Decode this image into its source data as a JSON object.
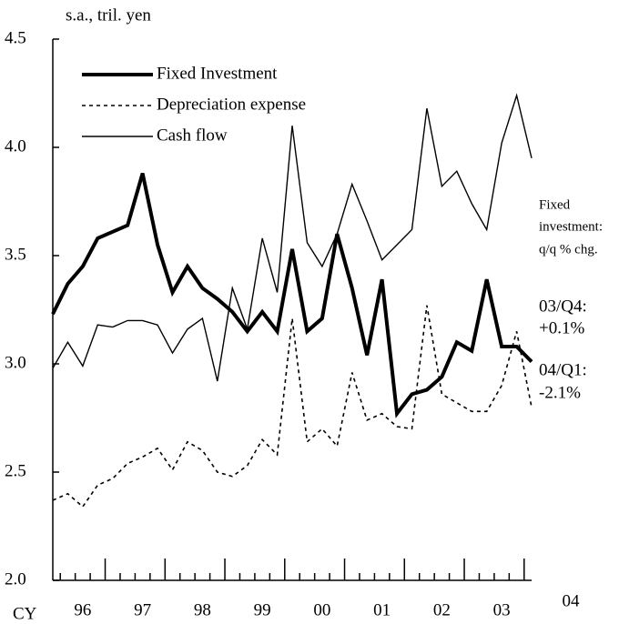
{
  "chart_data": {
    "type": "line",
    "ylabel": "s.a., tril. yen",
    "x_prefix": "CY",
    "x_end_label": "04",
    "categories": [
      null,
      null,
      "96",
      null,
      null,
      null,
      "97",
      null,
      null,
      null,
      "98",
      null,
      null,
      null,
      "99",
      null,
      null,
      null,
      "00",
      null,
      null,
      null,
      "01",
      null,
      null,
      null,
      "02",
      null,
      null,
      null,
      "03",
      null,
      null
    ],
    "series": [
      {
        "name": "Fixed Investment",
        "color": "#000000",
        "line_width": 4,
        "dash": "none",
        "values": [
          3.23,
          3.37,
          3.45,
          3.58,
          3.61,
          3.64,
          3.88,
          3.55,
          3.33,
          3.45,
          3.35,
          3.3,
          3.24,
          3.15,
          3.24,
          3.15,
          3.53,
          3.15,
          3.21,
          3.6,
          3.35,
          3.04,
          3.39,
          2.77,
          2.86,
          2.88,
          2.94,
          3.1,
          3.06,
          3.39,
          3.08,
          3.08,
          3.01
        ]
      },
      {
        "name": "Depreciation expense",
        "color": "#000000",
        "line_width": 1.6,
        "dash": "4 4",
        "values": [
          2.37,
          2.4,
          2.34,
          2.44,
          2.47,
          2.54,
          2.57,
          2.61,
          2.51,
          2.64,
          2.6,
          2.5,
          2.48,
          2.53,
          2.65,
          2.58,
          3.21,
          2.64,
          2.7,
          2.62,
          2.96,
          2.74,
          2.77,
          2.71,
          2.7,
          3.27,
          2.86,
          2.82,
          2.78,
          2.78,
          2.9,
          3.15,
          2.8
        ]
      },
      {
        "name": "Cash flow",
        "color": "#000000",
        "line_width": 1.4,
        "dash": "none",
        "values": [
          2.98,
          3.1,
          2.99,
          3.18,
          3.17,
          3.2,
          3.2,
          3.18,
          3.05,
          3.16,
          3.21,
          2.92,
          3.35,
          3.16,
          3.58,
          3.33,
          4.1,
          3.56,
          3.45,
          3.6,
          3.83,
          3.66,
          3.48,
          3.55,
          3.62,
          4.18,
          3.82,
          3.89,
          3.74,
          3.62,
          4.02,
          4.24,
          3.95
        ]
      }
    ],
    "ylim": [
      2.0,
      4.5
    ],
    "yticks": [
      {
        "value": 2.0,
        "label": "2.0"
      },
      2.5,
      {
        "value": 3.0,
        "label": "3.0"
      },
      3.5,
      {
        "value": 4.0,
        "label": "4.0"
      },
      4.5
    ],
    "legend": "upper left",
    "annotations": [
      "Fixed",
      "investment:",
      "q/q % chg.",
      "03/Q4:",
      "+0.1%",
      "04/Q1:",
      "-2.1%"
    ]
  }
}
